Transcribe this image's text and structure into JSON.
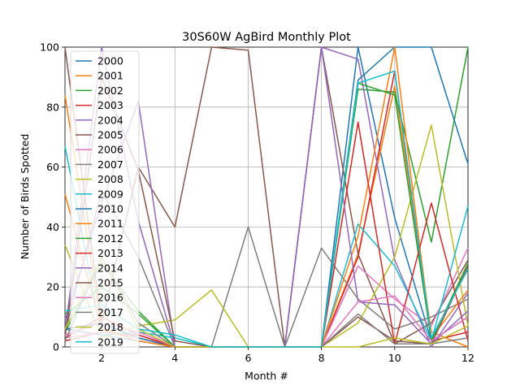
{
  "chart_data": {
    "type": "line",
    "title": "30S60W AgBird Monthly Plot",
    "xlabel": "Month #",
    "ylabel": "Number of Birds Spotted",
    "xlim": [
      1,
      12
    ],
    "ylim": [
      0,
      100
    ],
    "xticks": [
      2,
      4,
      6,
      8,
      10,
      12
    ],
    "yticks": [
      0,
      20,
      40,
      60,
      80,
      100
    ],
    "grid": true,
    "legend_position": "upper-left",
    "x": [
      1,
      2,
      3,
      4,
      5,
      6,
      7,
      8,
      9,
      10,
      11,
      12
    ],
    "series": [
      {
        "name": "2000",
        "color": "#1f77b4",
        "values": [
          6,
          4,
          2,
          0,
          0,
          0,
          0,
          0,
          100,
          43,
          2,
          10
        ]
      },
      {
        "name": "2001",
        "color": "#ff7f0e",
        "values": [
          84,
          6,
          3,
          0,
          0,
          0,
          0,
          0,
          31,
          87,
          5,
          0
        ]
      },
      {
        "name": "2002",
        "color": "#2ca02c",
        "values": [
          5,
          28,
          12,
          0,
          0,
          0,
          0,
          0,
          86,
          85,
          35,
          100
        ]
      },
      {
        "name": "2003",
        "color": "#d62728",
        "values": [
          2,
          5,
          4,
          0,
          0,
          0,
          0,
          0,
          30,
          92,
          2,
          5
        ]
      },
      {
        "name": "2004",
        "color": "#9467bd",
        "values": [
          5,
          100,
          42,
          0,
          0,
          0,
          0,
          100,
          96,
          29,
          0,
          18
        ]
      },
      {
        "name": "2005",
        "color": "#8c564b",
        "values": [
          100,
          8,
          60,
          40,
          100,
          99,
          0,
          100,
          31,
          1,
          8,
          29
        ]
      },
      {
        "name": "2006",
        "color": "#e377c2",
        "values": [
          3,
          5,
          3,
          0,
          0,
          0,
          0,
          0,
          27,
          16,
          7,
          33
        ]
      },
      {
        "name": "2007",
        "color": "#7f7f7f",
        "values": [
          5,
          52,
          30,
          0,
          0,
          40,
          0,
          33,
          16,
          6,
          10,
          16
        ]
      },
      {
        "name": "2008",
        "color": "#bcbd22",
        "values": [
          34,
          3,
          7,
          9,
          19,
          0,
          0,
          0,
          8,
          30,
          74,
          7
        ]
      },
      {
        "name": "2009",
        "color": "#17becf",
        "values": [
          67,
          4,
          5,
          3,
          0,
          0,
          0,
          0,
          41,
          27,
          2,
          47
        ]
      },
      {
        "name": "2010",
        "color": "#1f77b4",
        "values": [
          6,
          8,
          3,
          0,
          0,
          0,
          0,
          0,
          89,
          100,
          100,
          61
        ]
      },
      {
        "name": "2011",
        "color": "#ff7f0e",
        "values": [
          51,
          6,
          2,
          0,
          0,
          0,
          0,
          0,
          37,
          100,
          3,
          19
        ]
      },
      {
        "name": "2012",
        "color": "#2ca02c",
        "values": [
          11,
          20,
          11,
          0,
          0,
          0,
          0,
          0,
          88,
          84,
          2,
          28
        ]
      },
      {
        "name": "2013",
        "color": "#d62728",
        "values": [
          3,
          10,
          4,
          0,
          0,
          0,
          0,
          0,
          75,
          1,
          48,
          2
        ]
      },
      {
        "name": "2014",
        "color": "#9467bd",
        "values": [
          9,
          48,
          82,
          0,
          0,
          0,
          0,
          100,
          15,
          14,
          1,
          12
        ]
      },
      {
        "name": "2015",
        "color": "#8c564b",
        "values": [
          3,
          90,
          59,
          2,
          0,
          0,
          0,
          0,
          10,
          2,
          1,
          27
        ]
      },
      {
        "name": "2016",
        "color": "#e377c2",
        "values": [
          4,
          8,
          5,
          0,
          0,
          0,
          0,
          0,
          15,
          17,
          2,
          10
        ]
      },
      {
        "name": "2017",
        "color": "#7f7f7f",
        "values": [
          2,
          30,
          8,
          0,
          0,
          0,
          0,
          0,
          11,
          1,
          1,
          3
        ]
      },
      {
        "name": "2018",
        "color": "#bcbd22",
        "values": [
          6,
          30,
          6,
          0,
          0,
          0,
          0,
          0,
          0,
          3,
          1,
          7
        ]
      },
      {
        "name": "2019",
        "color": "#17becf",
        "values": [
          12,
          14,
          6,
          4,
          0,
          0,
          0,
          0,
          88,
          92,
          3,
          26
        ]
      }
    ]
  }
}
